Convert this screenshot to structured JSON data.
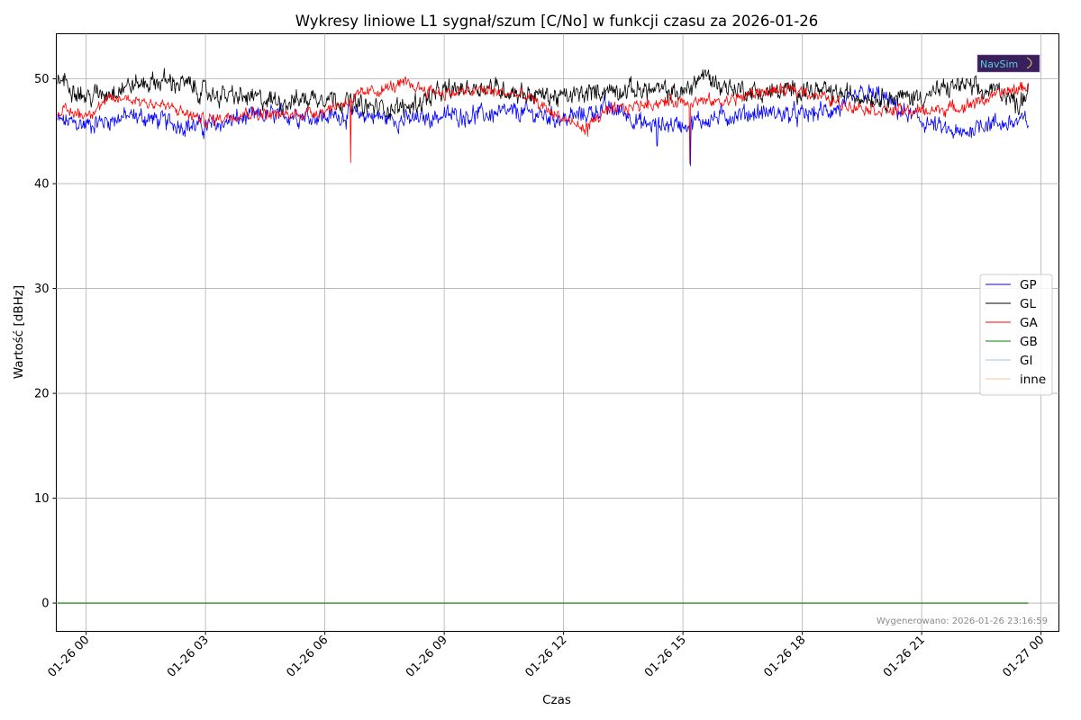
{
  "chart_data": {
    "type": "line",
    "title": "Wykresy liniowe L1 sygnał/szum [C/No] w funkcji czasu za 2026-01-26",
    "xlabel": "Czas",
    "ylabel": "Wartość [dBHz]",
    "x_range_hours": [
      -0.75,
      24.45
    ],
    "data_span_hours": [
      -0.72,
      23.68
    ],
    "ylim": [
      -2.7,
      54.3
    ],
    "yticks": [
      0,
      10,
      20,
      30,
      40,
      50
    ],
    "xticks": [
      {
        "hour": 0,
        "label": "01-26 00"
      },
      {
        "hour": 3,
        "label": "01-26 03"
      },
      {
        "hour": 6,
        "label": "01-26 06"
      },
      {
        "hour": 9,
        "label": "01-26 09"
      },
      {
        "hour": 12,
        "label": "01-26 12"
      },
      {
        "hour": 15,
        "label": "01-26 15"
      },
      {
        "hour": 18,
        "label": "01-26 18"
      },
      {
        "hour": 21,
        "label": "01-26 21"
      },
      {
        "hour": 24,
        "label": "01-27 00"
      }
    ],
    "grid": true,
    "legend_position": "center-right",
    "series": [
      {
        "name": "GP",
        "color": "#0000ff",
        "noise": 0.75,
        "hours": [
          -0.72,
          0.0,
          0.5,
          1.0,
          1.5,
          2.0,
          2.5,
          3.0,
          4.0,
          5.0,
          6.0,
          7.0,
          8.0,
          9.0,
          10.0,
          11.0,
          12.0,
          12.5,
          13.0,
          13.5,
          14.0,
          15.0,
          16.0,
          17.0,
          18.0,
          19.0,
          19.5,
          20.0,
          20.5,
          21.0,
          21.5,
          22.0,
          22.5,
          23.0,
          23.68
        ],
        "values": [
          46.0,
          45.6,
          46.0,
          46.4,
          46.3,
          45.9,
          45.6,
          45.4,
          46.3,
          46.6,
          46.4,
          46.6,
          46.0,
          46.5,
          46.6,
          46.8,
          46.2,
          46.6,
          47.2,
          46.9,
          45.6,
          45.7,
          46.4,
          46.8,
          46.5,
          47.2,
          48.6,
          48.3,
          46.8,
          46.0,
          45.2,
          44.6,
          45.8,
          45.7,
          46.0
        ]
      },
      {
        "name": "GL",
        "color": "#000000",
        "noise": 0.8,
        "hours": [
          -0.72,
          -0.6,
          0.0,
          0.5,
          1.0,
          1.5,
          2.0,
          2.5,
          3.0,
          4.0,
          5.0,
          6.0,
          7.0,
          8.0,
          9.0,
          10.0,
          11.0,
          12.0,
          13.0,
          14.0,
          15.0,
          15.5,
          16.0,
          17.0,
          18.0,
          19.0,
          20.0,
          21.0,
          22.0,
          22.5,
          23.0,
          23.4,
          23.68
        ],
        "values": [
          49.6,
          50.0,
          48.2,
          48.7,
          49.3,
          49.6,
          49.8,
          49.5,
          48.6,
          48.2,
          47.8,
          48.4,
          47.3,
          47.2,
          48.8,
          49.3,
          48.6,
          48.2,
          48.9,
          49.0,
          48.6,
          50.4,
          49.3,
          48.6,
          49.0,
          48.5,
          48.2,
          48.3,
          49.5,
          48.7,
          49.0,
          47.5,
          49.0
        ]
      },
      {
        "name": "GA",
        "color": "#ff0000",
        "noise": 0.5,
        "hours": [
          -0.72,
          0.0,
          0.5,
          1.0,
          2.0,
          3.0,
          4.0,
          5.0,
          6.0,
          7.0,
          8.0,
          9.0,
          10.0,
          11.0,
          12.0,
          12.5,
          13.0,
          14.0,
          15.0,
          16.0,
          17.0,
          18.0,
          19.0,
          20.0,
          21.0,
          22.0,
          23.0,
          23.68
        ],
        "values": [
          47.0,
          46.6,
          47.8,
          48.2,
          47.4,
          46.0,
          46.8,
          46.5,
          47.0,
          48.6,
          49.5,
          48.6,
          48.9,
          48.4,
          46.2,
          45.2,
          46.7,
          47.6,
          47.9,
          47.8,
          48.8,
          48.9,
          47.6,
          47.0,
          46.9,
          47.3,
          48.6,
          49.3
        ]
      },
      {
        "name": "GB",
        "color": "#008000",
        "noise": 0,
        "hours": [
          -0.72,
          23.68
        ],
        "values": [
          0,
          0
        ]
      },
      {
        "name": "GI",
        "color": "#9ec7ea",
        "noise": 0,
        "hours": [
          -0.72,
          23.68
        ],
        "values": [
          0,
          0
        ]
      },
      {
        "name": "inne",
        "color": "#f2c79a",
        "noise": 0,
        "hours": [
          -0.72,
          23.68
        ],
        "values": [
          0,
          0
        ]
      }
    ],
    "spikes": [
      {
        "series": "GA",
        "hour": 6.65,
        "value": 42.0
      },
      {
        "series": "GA",
        "hour": 15.17,
        "value": 41.9
      },
      {
        "series": "GP",
        "hour": 15.19,
        "value": 41.7
      },
      {
        "series": "GP",
        "hour": 14.35,
        "value": 43.6
      },
      {
        "series": "GA",
        "hour": 12.6,
        "value": 44.5
      }
    ],
    "footnote": "Wygenerowano: 2026-01-26 23:16:59",
    "logo_text": "NavSim"
  }
}
